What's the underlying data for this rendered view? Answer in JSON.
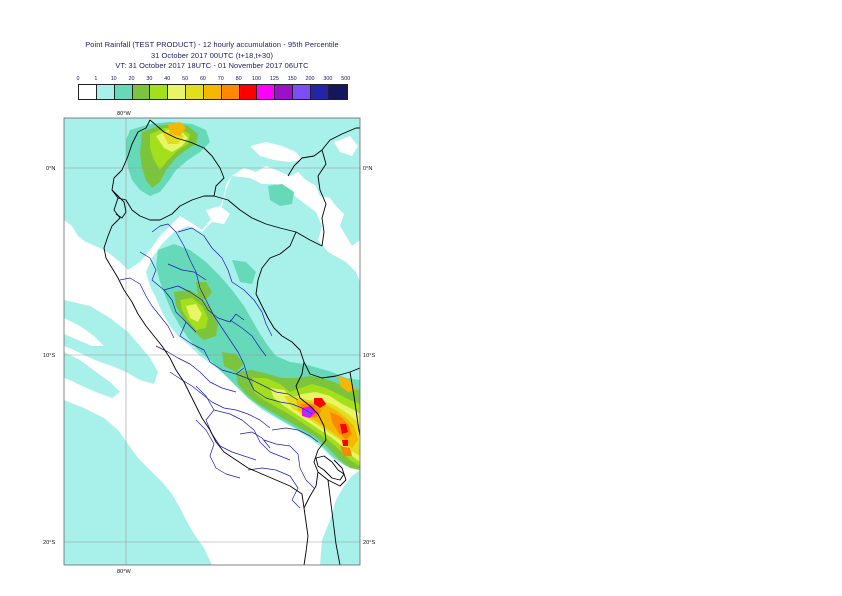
{
  "title": {
    "line1": "Point Rainfall (TEST PRODUCT) - 12 hourly accumulation - 95th Percentile",
    "line2": "31 October 2017 00UTC (t+18,t+30)",
    "line3": "VT: 31 October 2017 18UTC - 01 November 2017 06UTC"
  },
  "legend": {
    "thresholds": [
      "0",
      "1",
      "10",
      "20",
      "30",
      "40",
      "50",
      "60",
      "70",
      "80",
      "100",
      "125",
      "150",
      "200",
      "300",
      "500"
    ],
    "colors": [
      "#ffffff",
      "#a8f0ea",
      "#66d9b8",
      "#7cc43c",
      "#a3df1a",
      "#e8f566",
      "#e1de1e",
      "#f5b800",
      "#ff8800",
      "#ff0000",
      "#ff00ff",
      "#9b10c9",
      "#7b4ff5",
      "#2324a8",
      "#16165e"
    ]
  },
  "map": {
    "lat_labels": {
      "top_left": "0°N",
      "top_right": "0°N",
      "mid_left": "10°S",
      "mid_right": "10°S",
      "bot_left": "20°S",
      "bot_right": "20°S"
    },
    "lon_labels": {
      "top": "80°W",
      "bottom": "80°W"
    }
  }
}
